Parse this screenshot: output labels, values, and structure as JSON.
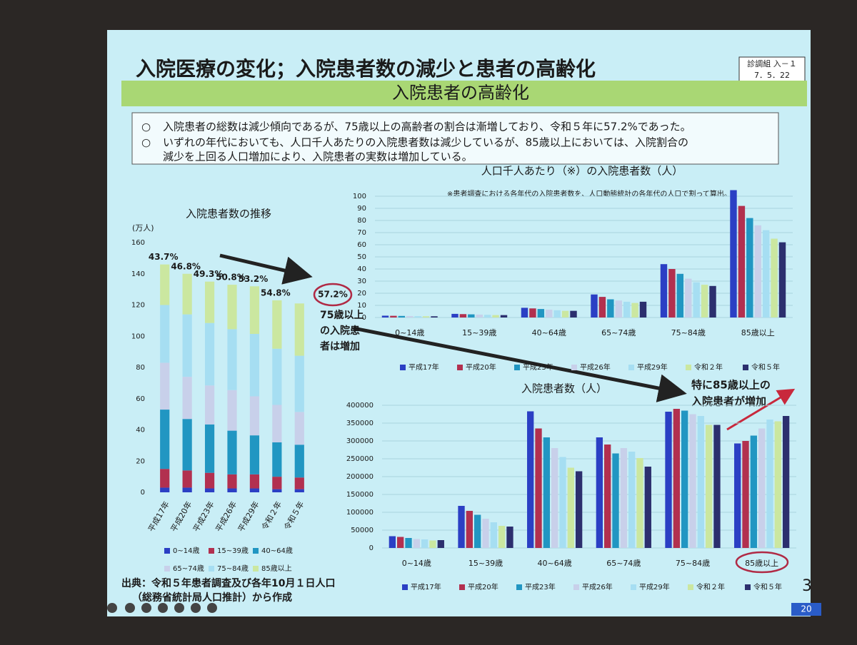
{
  "slide": {
    "title": "入院医療の変化；入院患者数の減少と患者の高齢化",
    "badge": [
      "診調組 入－１",
      "7．5．22"
    ],
    "subtitle": "入院患者の高齢化",
    "bullets": [
      [
        "入院患者の総数は減少傾向であるが、75歳以上の高齢者の割合は漸増しており、令和５年に57.2%であった。"
      ],
      [
        "いずれの年代においても、人口千人あたりの入院患者数は減少しているが、85歳以上においては、入院割合の",
        "減少を上回る人口増加により、入院患者の実数は増加している。"
      ]
    ],
    "source": [
      "出典：令和５年患者調査及び各年10月１日人口",
      "（総務省統計局人口推計）から作成"
    ],
    "page_number": "3",
    "slide_number": "20"
  },
  "annotations": {
    "seniors_75": [
      "75歳以上",
      "の入院患",
      "者は増加"
    ],
    "over_85": [
      "特に85歳以上の",
      "入院患者が増加"
    ]
  },
  "chart_data": [
    {
      "type": "bar",
      "stacked": true,
      "title": "入院患者数の推移",
      "unit": "(万人)",
      "grid": false,
      "categories": [
        "平成17年",
        "平成20年",
        "平成23年",
        "平成26年",
        "平成29年",
        "令和２年",
        "令和５年"
      ],
      "ylim": [
        0,
        160
      ],
      "yticks": [
        0,
        20,
        40,
        60,
        80,
        100,
        120,
        140,
        160
      ],
      "percent_labels": [
        "43.7%",
        "46.8%",
        "49.3%",
        "50.8%",
        "53.2%",
        "54.8%",
        "57.2%"
      ],
      "series": [
        {
          "name": "0~14歳",
          "color": "#2b3fc4",
          "values": [
            3,
            3,
            2.5,
            2.5,
            2.5,
            2,
            2
          ]
        },
        {
          "name": "15~39歳",
          "color": "#b2304f",
          "values": [
            12,
            11,
            10,
            9,
            9,
            8,
            7.5
          ]
        },
        {
          "name": "40~64歳",
          "color": "#2196c2",
          "values": [
            38,
            33,
            31,
            28,
            25,
            22,
            21
          ]
        },
        {
          "name": "65~74歳",
          "color": "#c8d0ea",
          "values": [
            30,
            27,
            25,
            26,
            25,
            24,
            21
          ]
        },
        {
          "name": "75~84歳",
          "color": "#a6def2",
          "values": [
            37,
            40,
            40,
            39,
            40,
            36,
            36
          ]
        },
        {
          "name": "85歳以上",
          "color": "#cbe7a0",
          "values": [
            26,
            26,
            26.5,
            28.5,
            30.5,
            31,
            33.5
          ]
        }
      ]
    },
    {
      "type": "bar",
      "stacked": false,
      "title": "人口千人あたり（※）の入院患者数（人）",
      "note": "※患者調査における各年代の入院患者数を、人口動態統計の各年代の人口で割って算出。",
      "grid": true,
      "categories": [
        "0~14歳",
        "15~39歳",
        "40~64歳",
        "65~74歳",
        "75~84歳",
        "85歳以上"
      ],
      "ylim": [
        0,
        110
      ],
      "yticks": [
        0,
        10,
        20,
        30,
        40,
        50,
        60,
        70,
        80,
        90,
        100
      ],
      "series": [
        {
          "name": "平成17年",
          "color": "#2b3fc4",
          "values": [
            1.5,
            3,
            8,
            19,
            44,
            105
          ]
        },
        {
          "name": "平成20年",
          "color": "#b2304f",
          "values": [
            1.4,
            2.8,
            7.5,
            17,
            40,
            92
          ]
        },
        {
          "name": "平成23年",
          "color": "#2196c2",
          "values": [
            1.3,
            2.6,
            7,
            15,
            36,
            82
          ]
        },
        {
          "name": "平成26年",
          "color": "#c8d0ea",
          "values": [
            1.2,
            2.4,
            6.5,
            14,
            32,
            76
          ]
        },
        {
          "name": "平成29年",
          "color": "#a6def2",
          "values": [
            1.1,
            2.2,
            6,
            13,
            29,
            72
          ]
        },
        {
          "name": "令和２年",
          "color": "#cbe7a0",
          "values": [
            1,
            2,
            5.5,
            12,
            27,
            65
          ]
        },
        {
          "name": "令和５年",
          "color": "#2c2f6e",
          "values": [
            1,
            2,
            5.5,
            13,
            26,
            62
          ]
        }
      ]
    },
    {
      "type": "bar",
      "stacked": false,
      "title": "入院患者数（人）",
      "grid": true,
      "categories": [
        "0~14歳",
        "15~39歳",
        "40~64歳",
        "65~74歳",
        "75~84歳",
        "85歳以上"
      ],
      "ylim": [
        0,
        400000
      ],
      "yticks": [
        0,
        50000,
        100000,
        150000,
        200000,
        250000,
        300000,
        350000,
        400000
      ],
      "series": [
        {
          "name": "平成17年",
          "color": "#2b3fc4",
          "values": [
            33000,
            118000,
            383000,
            310000,
            382000,
            293000
          ]
        },
        {
          "name": "平成20年",
          "color": "#b2304f",
          "values": [
            31000,
            104000,
            335000,
            290000,
            390000,
            300000
          ]
        },
        {
          "name": "平成23年",
          "color": "#2196c2",
          "values": [
            28000,
            93000,
            310000,
            265000,
            385000,
            315000
          ]
        },
        {
          "name": "平成26年",
          "color": "#c8d0ea",
          "values": [
            25000,
            82000,
            280000,
            280000,
            375000,
            335000
          ]
        },
        {
          "name": "平成29年",
          "color": "#a6def2",
          "values": [
            24000,
            72000,
            255000,
            270000,
            370000,
            360000
          ]
        },
        {
          "name": "令和２年",
          "color": "#cbe7a0",
          "values": [
            21000,
            62000,
            225000,
            252000,
            345000,
            355000
          ]
        },
        {
          "name": "令和５年",
          "color": "#2c2f6e",
          "values": [
            22000,
            60000,
            215000,
            228000,
            345000,
            370000
          ]
        }
      ]
    }
  ]
}
